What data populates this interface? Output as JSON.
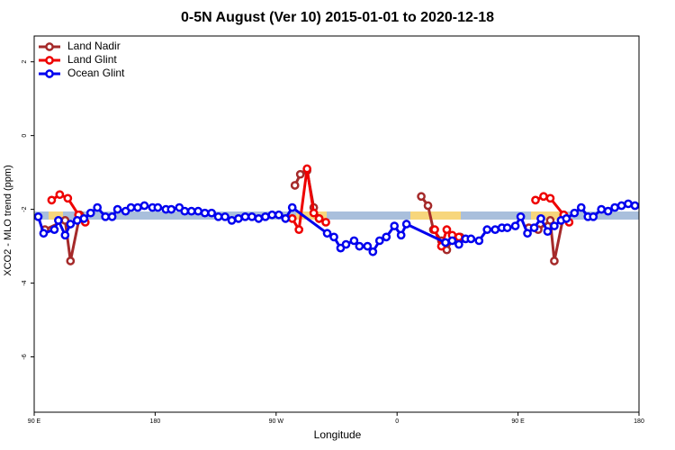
{
  "chart_data": {
    "type": "line",
    "title": "0-5N August (Ver 10)   2015-01-01 to 2020-12-18",
    "x_label": "Longitude",
    "y_label": "XCO2 - MLO trend (ppm)",
    "xlim": [
      90,
      540
    ],
    "ylim": [
      -7.5,
      2.7
    ],
    "xticks": [
      {
        "value": 90,
        "label": "90 E"
      },
      180,
      {
        "value": 270,
        "label": "90 W"
      },
      {
        "value": 360,
        "label": "0"
      },
      {
        "value": 450,
        "label": "90 E"
      },
      {
        "value": 540,
        "label": "180"
      }
    ],
    "yticks": [
      2,
      0,
      -2,
      -4,
      -6
    ],
    "legend": "top-left",
    "series": [
      {
        "name": "Land Nadir",
        "color": "#a52a2a",
        "x": [
          98,
          113,
          117,
          124,
          null,
          284,
          288,
          293,
          298,
          302,
          null,
          378,
          383,
          387,
          393,
          397,
          402,
          407,
          null,
          458,
          465,
          474,
          477,
          484
        ],
        "values": [
          -2.55,
          -2.3,
          -3.4,
          -2.15,
          null,
          -1.35,
          -1.05,
          -0.95,
          -1.95,
          -2.25,
          null,
          -1.65,
          -1.9,
          -2.55,
          -2.85,
          -3.1,
          -2.75,
          -2.75,
          null,
          -2.5,
          -2.55,
          -2.3,
          -3.4,
          -2.15
        ]
      },
      {
        "name": "Land Glint",
        "color": "#ee0000",
        "x": [
          103,
          109,
          115,
          123,
          128,
          null,
          282,
          287,
          293,
          298,
          302,
          307,
          null,
          388,
          393,
          397,
          401,
          406,
          null,
          463,
          469,
          474,
          484,
          488
        ],
        "values": [
          -1.75,
          -1.6,
          -1.7,
          -2.15,
          -2.35,
          null,
          -2.25,
          -2.55,
          -0.9,
          -2.1,
          -2.25,
          -2.35,
          null,
          -2.55,
          -3.0,
          -2.55,
          -2.7,
          -2.75,
          null,
          -1.75,
          -1.65,
          -1.7,
          -2.15,
          -2.35
        ]
      },
      {
        "name": "Ocean Glint",
        "color": "#0000ee",
        "x": [
          93,
          97,
          105,
          108,
          113,
          117,
          122,
          127,
          132,
          137,
          143,
          148,
          152,
          158,
          162,
          167,
          172,
          178,
          182,
          188,
          192,
          198,
          202,
          207,
          212,
          217,
          222,
          227,
          232,
          237,
          242,
          247,
          252,
          257,
          262,
          267,
          272,
          277,
          282,
          308,
          313,
          318,
          322,
          328,
          332,
          338,
          342,
          347,
          352,
          358,
          363,
          367,
          396,
          401,
          406,
          411,
          415,
          421,
          427,
          433,
          438,
          442,
          448,
          452,
          457,
          462,
          467,
          472,
          477,
          482,
          486,
          492,
          497,
          502,
          506,
          512,
          517,
          522,
          527,
          532,
          537
        ],
        "values": [
          -2.2,
          -2.65,
          -2.55,
          -2.3,
          -2.7,
          -2.4,
          -2.3,
          -2.25,
          -2.1,
          -1.95,
          -2.2,
          -2.2,
          -2.0,
          -2.05,
          -1.95,
          -1.95,
          -1.9,
          -1.95,
          -1.95,
          -2.0,
          -2.0,
          -1.95,
          -2.05,
          -2.05,
          -2.05,
          -2.1,
          -2.1,
          -2.2,
          -2.2,
          -2.3,
          -2.25,
          -2.2,
          -2.2,
          -2.25,
          -2.2,
          -2.15,
          -2.15,
          -2.25,
          -1.95,
          -2.65,
          -2.75,
          -3.05,
          -2.95,
          -2.85,
          -3.0,
          -3.0,
          -3.15,
          -2.85,
          -2.75,
          -2.45,
          -2.7,
          -2.4,
          -2.9,
          -2.85,
          -2.95,
          -2.8,
          -2.8,
          -2.85,
          -2.55,
          -2.55,
          -2.5,
          -2.5,
          -2.45,
          -2.2,
          -2.65,
          -2.5,
          -2.25,
          -2.6,
          -2.45,
          -2.3,
          -2.25,
          -2.1,
          -1.95,
          -2.2,
          -2.2,
          -2.0,
          -2.05,
          -1.95,
          -1.9,
          -1.85,
          -1.9
        ]
      }
    ]
  }
}
